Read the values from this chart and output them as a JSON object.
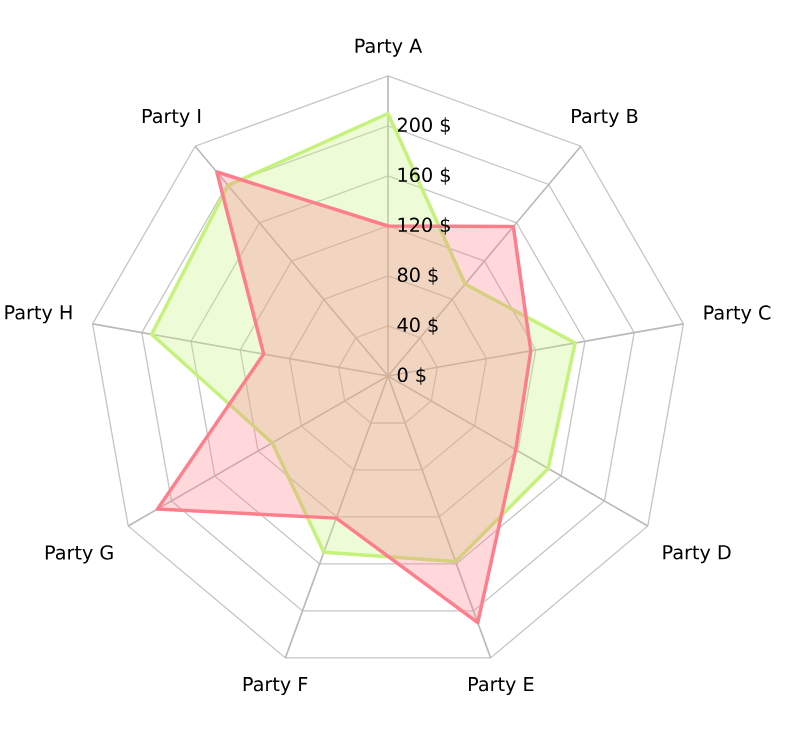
{
  "chart_data": {
    "type": "radar",
    "categories": [
      "Party A",
      "Party B",
      "Party C",
      "Party D",
      "Party E",
      "Party F",
      "Party G",
      "Party H",
      "Party I"
    ],
    "series": [
      {
        "color": "#c4f27b",
        "values": [
          210,
          96,
          152,
          148,
          158,
          150,
          107,
          192,
          199
        ]
      },
      {
        "color": "#ff7e8c",
        "values": [
          120,
          156,
          116,
          118,
          210,
          121,
          213,
          101,
          213
        ]
      }
    ],
    "ylim": [
      0,
      240
    ],
    "yticks": [
      {
        "value": 0,
        "label": "0 $"
      },
      {
        "value": 40,
        "label": "40 $"
      },
      {
        "value": 80,
        "label": "80 $"
      },
      {
        "value": 120,
        "label": "120 $"
      },
      {
        "value": 160,
        "label": "160 $"
      },
      {
        "value": 200,
        "label": "200 $"
      }
    ],
    "grid": true,
    "marker": "none"
  }
}
